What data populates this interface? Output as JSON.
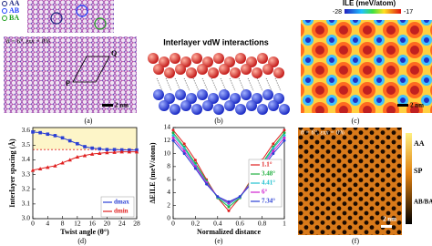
{
  "panel_labels": [
    "(a)",
    "(b)",
    "(c)",
    "(d)",
    "(e)",
    "(f)"
  ],
  "panel_a": {
    "legend": [
      "AA",
      "AB",
      "BA"
    ],
    "annotation": "θ = 6°, εxx = 0%",
    "points": [
      "P",
      "Q"
    ],
    "scale_bar": "2 nm"
  },
  "panel_b": {
    "title": "Interlayer vdW interactions"
  },
  "panel_c": {
    "colorbar_title": "ILE (meV/atom)",
    "colorbar_range": [
      -28,
      -17
    ],
    "scale_bar": "2 nm"
  },
  "panel_f": {
    "annotation": "θ = 6°, εxx = 0%",
    "colorbar_labels": [
      "AA",
      "SP",
      "AB/BA"
    ],
    "scale_bar": "2 nm"
  },
  "chart_data": [
    {
      "type": "line",
      "y_label": "Interlayer spacing (Å)",
      "x_label": "Twist angle (θ°)",
      "x": [
        0,
        2,
        4,
        6,
        8,
        10,
        12,
        14,
        16,
        18,
        20,
        22,
        24,
        26,
        28
      ],
      "series": [
        {
          "name": "dmax",
          "color": "#2a3fd4",
          "marker": "square",
          "values": [
            3.59,
            3.585,
            3.575,
            3.565,
            3.55,
            3.53,
            3.51,
            3.49,
            3.48,
            3.475,
            3.47,
            3.47,
            3.468,
            3.467,
            3.467
          ]
        },
        {
          "name": "dmin",
          "color": "#e02020",
          "marker": "triangle",
          "values": [
            3.33,
            3.34,
            3.35,
            3.36,
            3.38,
            3.4,
            3.42,
            3.43,
            3.44,
            3.445,
            3.45,
            3.452,
            3.455,
            3.455,
            3.455
          ]
        }
      ],
      "xlim": [
        0,
        28
      ],
      "ylim": [
        3,
        3.62
      ],
      "xticks": [
        0,
        4,
        8,
        12,
        16,
        20,
        24,
        28
      ],
      "yticks": [
        {
          "value": 3,
          "label": "3.0"
        },
        3.1,
        3.2,
        3.3,
        3.4,
        3.5,
        3.6
      ],
      "reference_line": 3.47,
      "shade_color": "#fdf5c8",
      "legend": "lower right"
    },
    {
      "type": "line",
      "y_label": "ΔEILE (meV/atom)",
      "x_label": "Normalized distance",
      "x": [
        0,
        0.1,
        0.2,
        0.3,
        0.4,
        0.5,
        0.6,
        0.7,
        0.8,
        0.9,
        1
      ],
      "series": [
        {
          "name": "1.1°",
          "color": "#e02020",
          "values": [
            13.6,
            11.5,
            9,
            6,
            3.2,
            1.2,
            3.2,
            6,
            9,
            11.5,
            13.6
          ]
        },
        {
          "name": "3.48°",
          "color": "#20b040",
          "values": [
            13.2,
            11,
            8.5,
            5.8,
            3.2,
            1.8,
            3.2,
            5.8,
            8.5,
            11,
            13.2
          ]
        },
        {
          "name": "4.41°",
          "color": "#20c0d0",
          "values": [
            12.8,
            10.8,
            8.2,
            5.6,
            3.3,
            2.2,
            3.3,
            5.6,
            8.2,
            10.8,
            12.8
          ]
        },
        {
          "name": "6°",
          "color": "#d020d0",
          "values": [
            12.4,
            10.4,
            8,
            5.5,
            3.4,
            2.4,
            3.4,
            5.5,
            8,
            10.4,
            12.4
          ]
        },
        {
          "name": "7.34°",
          "color": "#2a3fd4",
          "values": [
            12,
            10,
            7.7,
            5.3,
            3.4,
            2.6,
            3.4,
            5.3,
            7.7,
            10,
            12
          ]
        }
      ],
      "xlim": [
        0,
        1
      ],
      "ylim": [
        0,
        14
      ],
      "xticks": [
        0,
        0.2,
        0.4,
        0.6,
        0.8,
        1
      ],
      "yticks": [
        0,
        2,
        4,
        6,
        8,
        10,
        12,
        14
      ],
      "legend": "right"
    }
  ]
}
